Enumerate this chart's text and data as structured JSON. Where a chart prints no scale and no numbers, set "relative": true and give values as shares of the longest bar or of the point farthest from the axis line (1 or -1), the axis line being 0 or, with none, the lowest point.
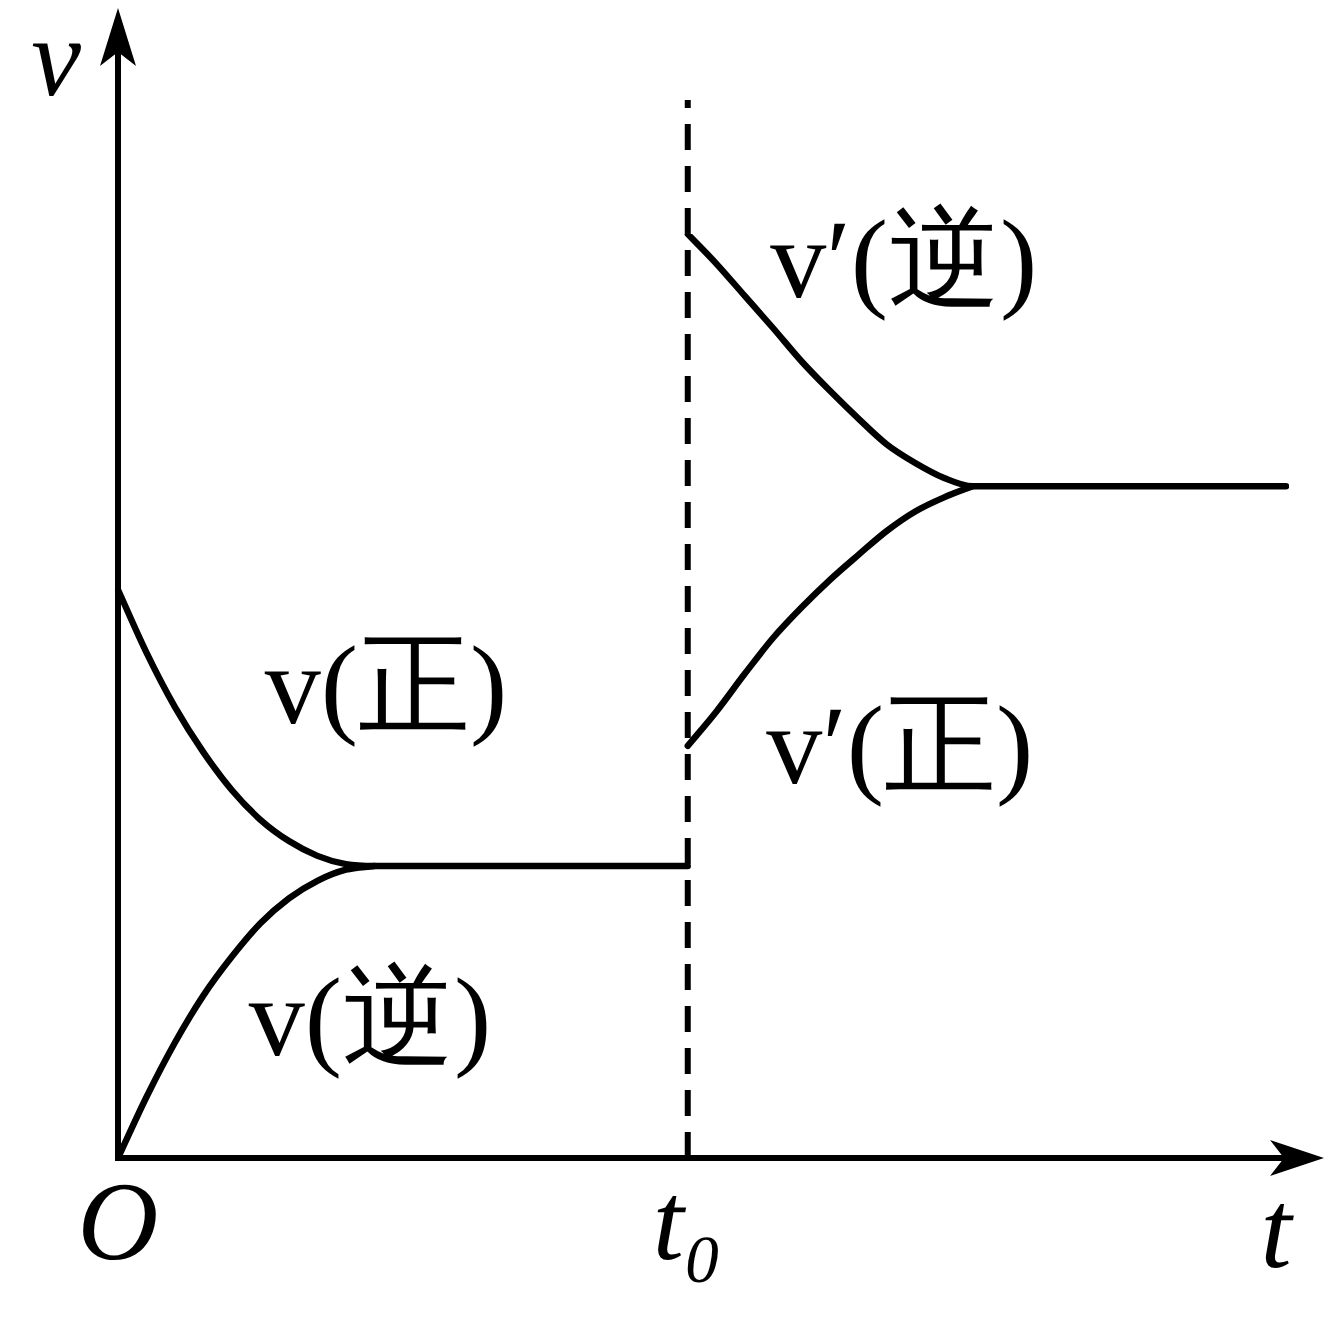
{
  "chart_data": {
    "type": "line",
    "relative": true,
    "categories": [
      "O",
      null,
      null,
      null,
      null,
      null,
      null,
      null,
      null,
      null,
      null,
      null,
      null,
      null,
      null,
      null,
      null,
      null,
      null,
      null,
      "t₀",
      null,
      null,
      null,
      null,
      null,
      null,
      null,
      null,
      null,
      null,
      null,
      null,
      null,
      null,
      null,
      null,
      null,
      null,
      null,
      null,
      null
    ],
    "series": [
      {
        "name": "v(正)",
        "color": "#000000",
        "values": [
          0.615,
          0.547,
          0.488,
          0.439,
          0.398,
          0.366,
          0.343,
          0.327,
          0.318,
          0.316,
          0.316,
          0.316,
          0.316,
          0.316,
          0.316,
          0.316,
          0.316,
          0.316,
          0.316,
          0.316,
          0.316,
          null,
          null,
          null,
          null,
          null,
          null,
          null,
          null,
          null,
          null,
          null,
          null,
          null,
          null,
          null,
          null,
          null,
          null,
          null,
          null,
          null
        ]
      },
      {
        "name": "v(逆)",
        "color": "#000000",
        "values": [
          0,
          0.066,
          0.125,
          0.176,
          0.218,
          0.254,
          0.281,
          0.3,
          0.312,
          0.316,
          null,
          null,
          null,
          null,
          null,
          null,
          null,
          null,
          null,
          null,
          null,
          null,
          null,
          null,
          null,
          null,
          null,
          null,
          null,
          null,
          null,
          null,
          null,
          null,
          null,
          null,
          null,
          null,
          null,
          null,
          null,
          null
        ]
      },
      {
        "name": "v′(逆)",
        "color": "#000000",
        "values": [
          null,
          null,
          null,
          null,
          null,
          null,
          null,
          null,
          null,
          null,
          null,
          null,
          null,
          null,
          null,
          null,
          null,
          null,
          null,
          null,
          1,
          0.968,
          0.933,
          0.898,
          0.862,
          0.83,
          0.8,
          0.772,
          0.752,
          0.736,
          0.727,
          0.727,
          0.727,
          0.727,
          0.727,
          0.727,
          0.727,
          0.727,
          0.727,
          0.727,
          0.727,
          0.727
        ]
      },
      {
        "name": "v′(正)",
        "color": "#000000",
        "values": [
          null,
          null,
          null,
          null,
          null,
          null,
          null,
          null,
          null,
          null,
          null,
          null,
          null,
          null,
          null,
          null,
          null,
          null,
          null,
          null,
          0.446,
          0.483,
          0.524,
          0.563,
          0.596,
          0.626,
          0.653,
          0.679,
          0.7,
          0.715,
          0.727,
          null,
          null,
          null,
          null,
          null,
          null,
          null,
          null,
          null,
          null,
          null
        ]
      }
    ],
    "xlabel": "t",
    "ylabel": "v",
    "ref_lines": [
      {
        "axis": "x",
        "value": "t₀",
        "line_style": "dashed",
        "color": "#000000"
      }
    ],
    "tick_labels": "x",
    "legend": false,
    "grid": false,
    "marker": "none",
    "line_style": "solid"
  }
}
